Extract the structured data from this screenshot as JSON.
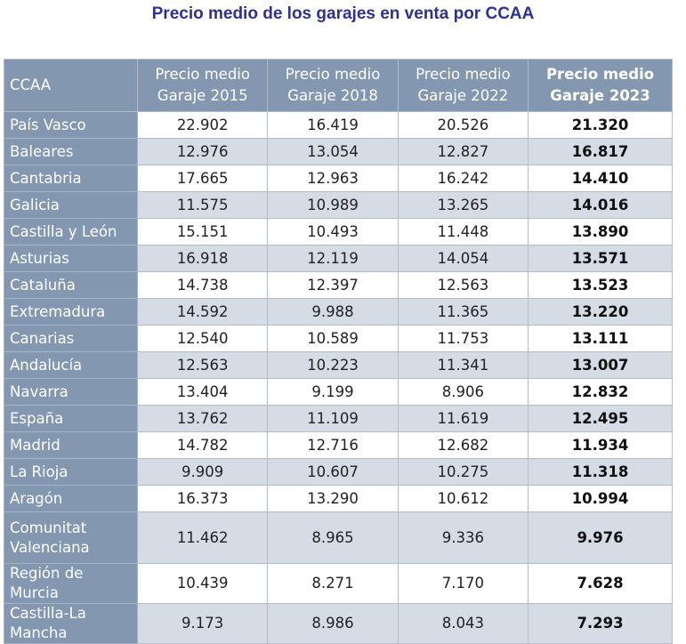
{
  "title": "Precio medio de los garajes en venta por CCAA",
  "headers": [
    "CCAA",
    "Precio medio Garaje 2015",
    "Precio medio Garaje 2018",
    "Precio medio Garaje 2022",
    "Precio medio Garaje 2023"
  ],
  "rows": [
    [
      "País Vasco",
      "22.902",
      "16.419",
      "20.526",
      "21.320"
    ],
    [
      "Baleares",
      "12.976",
      "13.054",
      "12.827",
      "16.817"
    ],
    [
      "Cantabria",
      "17.665",
      "12.963",
      "16.242",
      "14.410"
    ],
    [
      "Galicia",
      "11.575",
      "10.989",
      "13.265",
      "14.016"
    ],
    [
      "Castilla y León",
      "15.151",
      "10.493",
      "11.448",
      "13.890"
    ],
    [
      "Asturias",
      "16.918",
      "12.119",
      "14.054",
      "13.571"
    ],
    [
      "Cataluña",
      "14.738",
      "12.397",
      "12.563",
      "13.523"
    ],
    [
      "Extremadura",
      "14.592",
      "9.988",
      "11.365",
      "13.220"
    ],
    [
      "Canarias",
      "12.540",
      "10.589",
      "11.753",
      "13.111"
    ],
    [
      "Andalucía",
      "12.563",
      "10.223",
      "11.341",
      "13.007"
    ],
    [
      "Navarra",
      "13.404",
      "9.199",
      "8.906",
      "12.832"
    ],
    [
      "España",
      "13.762",
      "11.109",
      "11.619",
      "12.495"
    ],
    [
      "Madrid",
      "14.782",
      "12.716",
      "12.682",
      "11.934"
    ],
    [
      "La Rioja",
      "9.909",
      "10.607",
      "10.275",
      "11.318"
    ],
    [
      "Aragón",
      "16.373",
      "13.290",
      "10.612",
      "10.994"
    ],
    [
      "Comunitat Valenciana",
      "11.462",
      "8.965",
      "9.336",
      "9.976"
    ],
    [
      "Región de Murcia",
      "10.439",
      "8.271",
      "7.170",
      "7.628"
    ],
    [
      "Castilla-La Mancha",
      "9.173",
      "8.986",
      "8.043",
      "7.293"
    ]
  ],
  "colors": {
    "title": "#2e3192",
    "header_bg": "#8497b0",
    "alt_row": "#d6dce5"
  }
}
